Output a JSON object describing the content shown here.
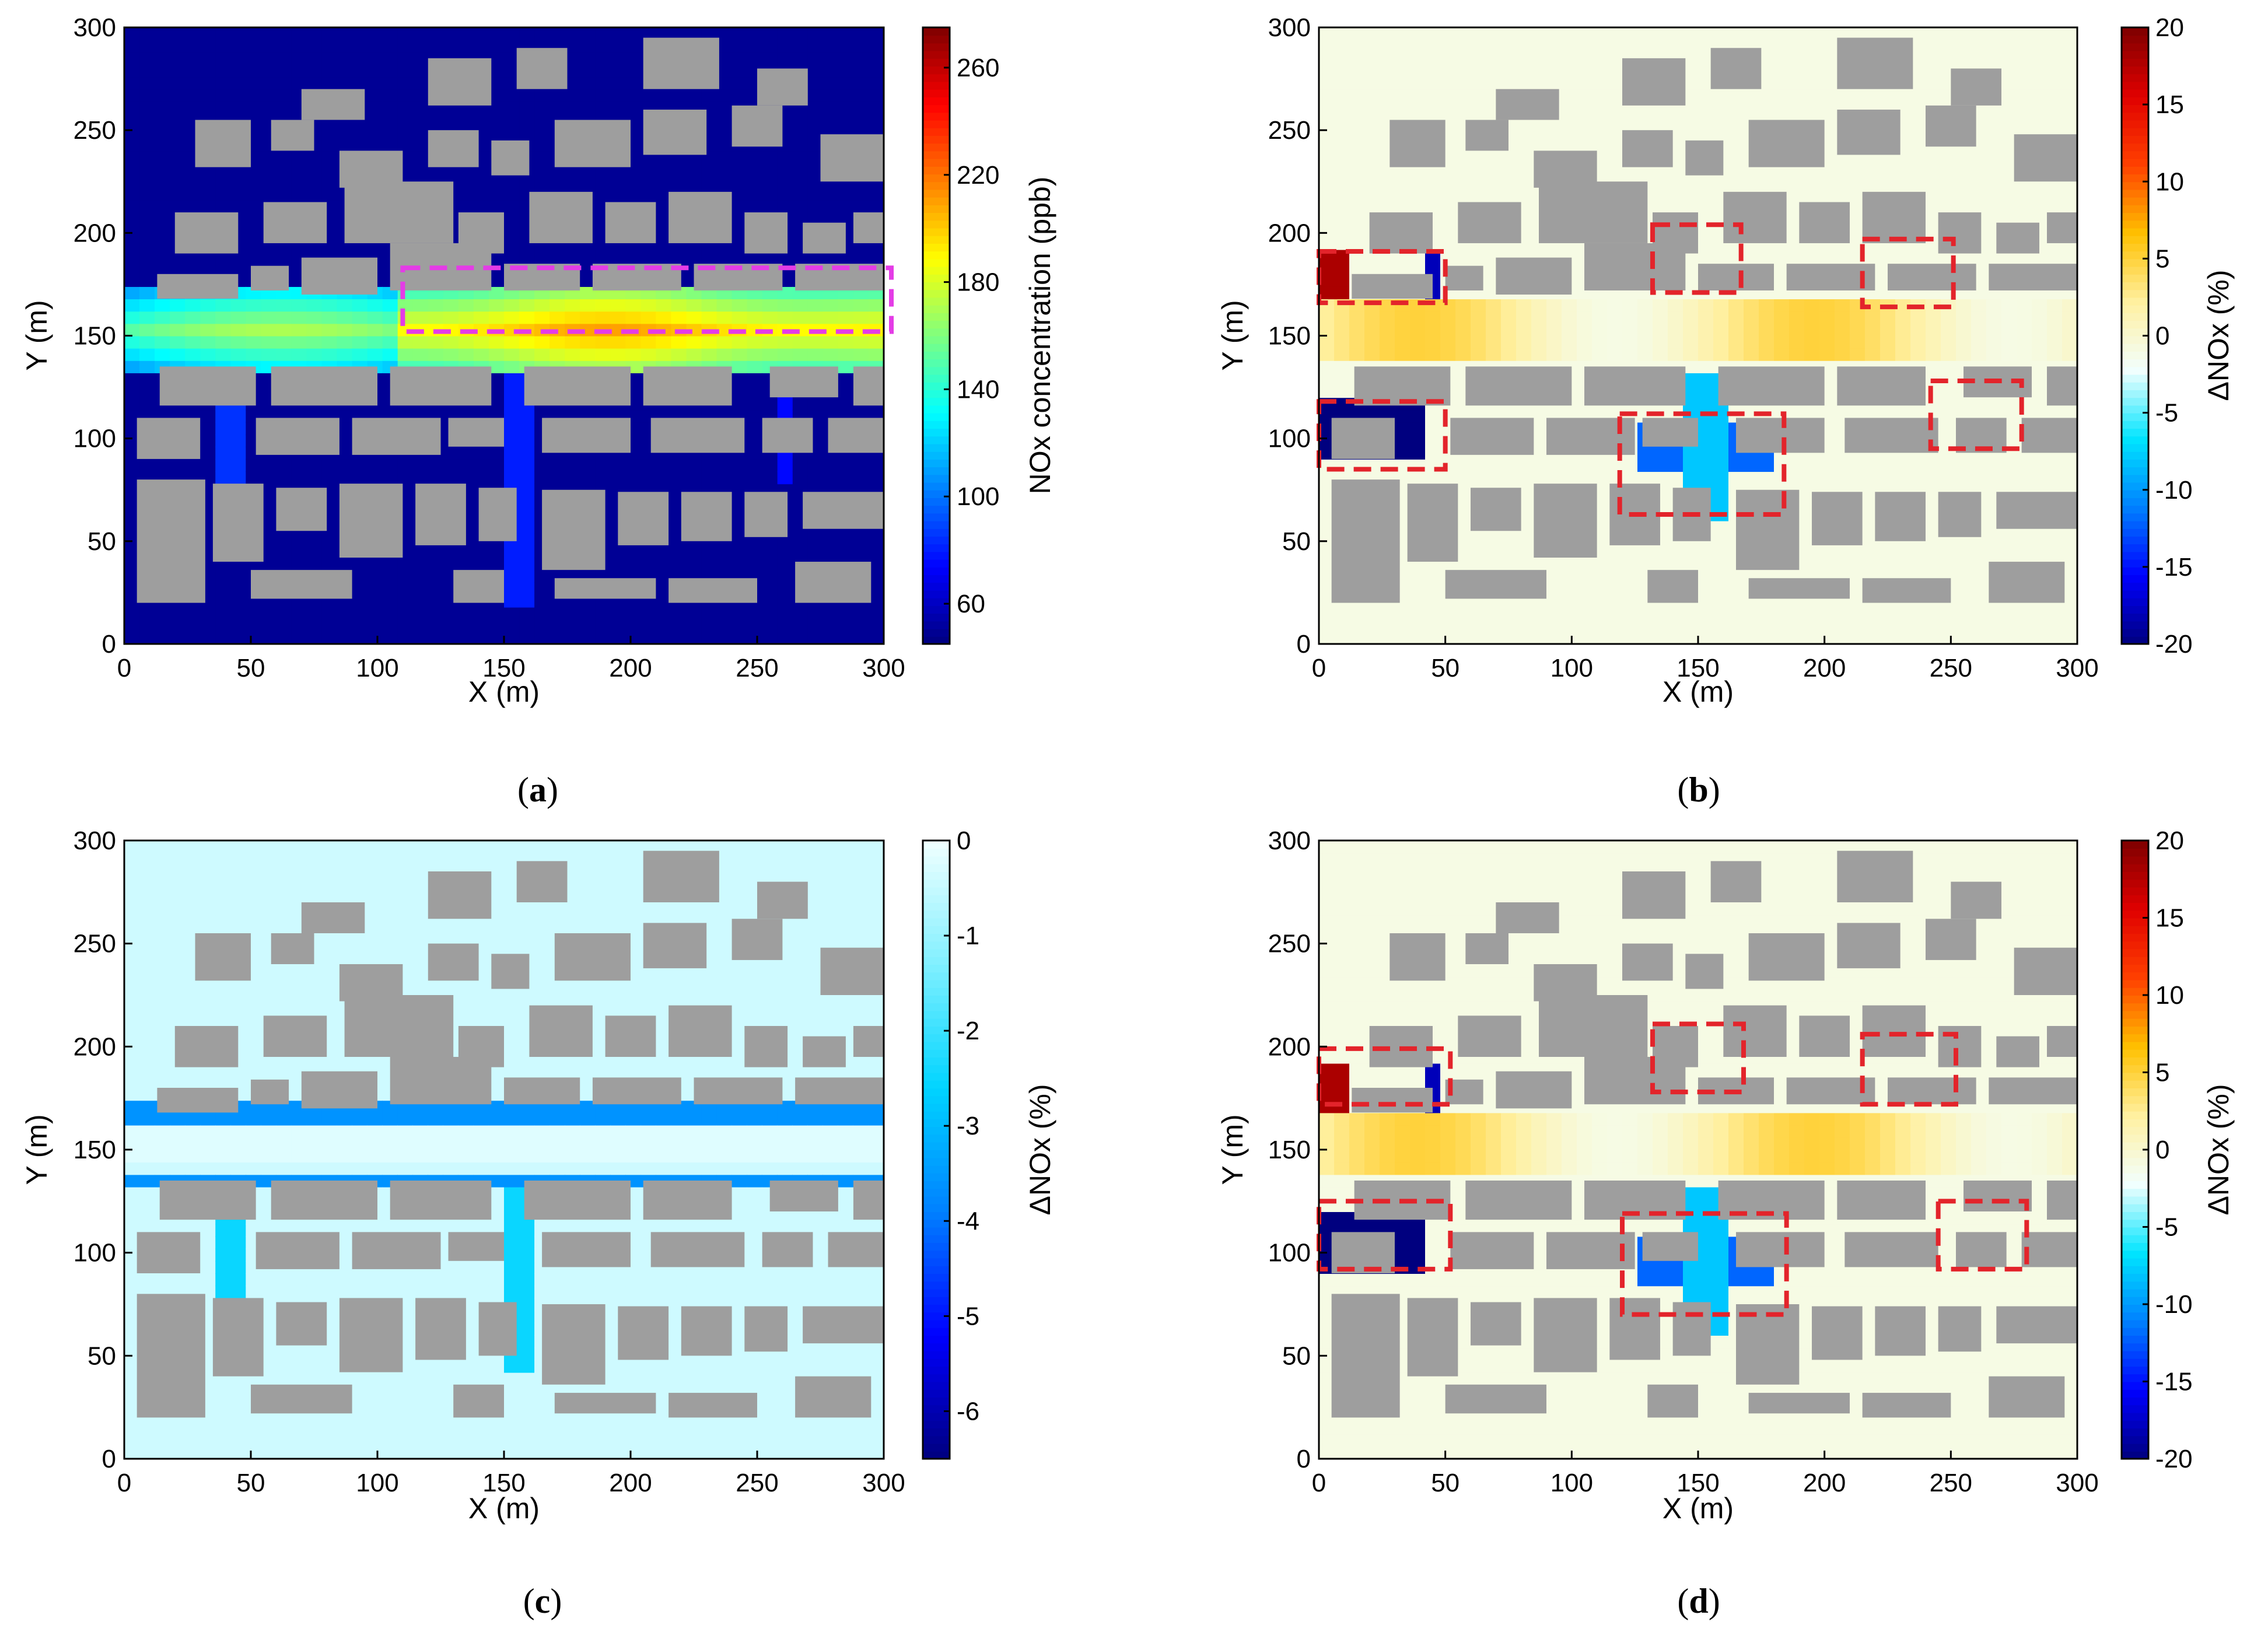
{
  "colors": {
    "background": "#ffffff",
    "building": "#9e9e9e",
    "box_magenta": "#e43ce6",
    "box_red": "#e3242b",
    "axis": "#000000"
  },
  "panels": [
    {
      "caption": "a",
      "colorbar_label": "NOx concentration (ppb)",
      "colorbar_ticks": [
        "60",
        "100",
        "140",
        "180",
        "220",
        "260"
      ],
      "colormap": "jet",
      "chart_data": {
        "type": "heatmap",
        "xlabel": "X (m)",
        "ylabel": "Y (m)",
        "xlim": [
          0,
          300
        ],
        "ylim": [
          0,
          300
        ],
        "xticks": [
          "0",
          "50",
          "100",
          "150",
          "200",
          "250",
          "300"
        ],
        "yticks": [
          "0",
          "50",
          "100",
          "150",
          "200",
          "250",
          "300"
        ],
        "colorbar": {
          "label": "NOx concentration (ppb)",
          "range": [
            45,
            275
          ],
          "ticks": [
            60,
            100,
            140,
            180,
            220,
            260
          ]
        },
        "highlight_boxes": [
          {
            "x": [
              110,
              303
            ],
            "y": [
              152,
              183
            ],
            "color": "magenta"
          }
        ]
      }
    },
    {
      "caption": "b",
      "colorbar_label": "ΔNOx (%)",
      "colorbar_ticks": [
        "-20",
        "-15",
        "-10",
        "-5",
        "0",
        "5",
        "10",
        "15",
        "20"
      ],
      "colormap": "diverging",
      "chart_data": {
        "type": "heatmap",
        "xlabel": "X (m)",
        "ylabel": "Y (m)",
        "xlim": [
          0,
          300
        ],
        "ylim": [
          0,
          300
        ],
        "xticks": [
          "0",
          "50",
          "100",
          "150",
          "200",
          "250",
          "300"
        ],
        "yticks": [
          "0",
          "50",
          "100",
          "150",
          "200",
          "250",
          "300"
        ],
        "colorbar": {
          "label": "ΔNOx (%)",
          "range": [
            -20,
            20
          ],
          "ticks": [
            -20,
            -15,
            -10,
            -5,
            0,
            5,
            10,
            15,
            20
          ]
        },
        "highlight_boxes": [
          {
            "x": [
              0,
              50
            ],
            "y": [
              166,
              191
            ]
          },
          {
            "x": [
              132,
              167
            ],
            "y": [
              171,
              204
            ]
          },
          {
            "x": [
              215,
              251
            ],
            "y": [
              164,
              197
            ]
          },
          {
            "x": [
              0,
              50
            ],
            "y": [
              85,
              118
            ]
          },
          {
            "x": [
              119,
              184
            ],
            "y": [
              63,
              112
            ]
          },
          {
            "x": [
              242,
              278
            ],
            "y": [
              95,
              128
            ]
          }
        ]
      }
    },
    {
      "caption": "c",
      "colorbar_label": "ΔNOx (%)",
      "colorbar_ticks": [
        "-6",
        "-5",
        "-4",
        "-3",
        "-2",
        "-1",
        "0"
      ],
      "colormap": "blues",
      "chart_data": {
        "type": "heatmap",
        "xlabel": "X (m)",
        "ylabel": "Y (m)",
        "xlim": [
          0,
          300
        ],
        "ylim": [
          0,
          300
        ],
        "xticks": [
          "0",
          "50",
          "100",
          "150",
          "200",
          "250",
          "300"
        ],
        "yticks": [
          "0",
          "50",
          "100",
          "150",
          "200",
          "250",
          "300"
        ],
        "colorbar": {
          "label": "ΔNOx (%)",
          "range": [
            -6.5,
            0
          ],
          "ticks": [
            -6,
            -5,
            -4,
            -3,
            -2,
            -1,
            0
          ]
        },
        "highlight_boxes": []
      }
    },
    {
      "caption": "d",
      "colorbar_label": "ΔNOx (%)",
      "colorbar_ticks": [
        "-20",
        "-15",
        "-10",
        "-5",
        "0",
        "5",
        "10",
        "15",
        "20"
      ],
      "colormap": "diverging",
      "chart_data": {
        "type": "heatmap",
        "xlabel": "X (m)",
        "ylabel": "Y (m)",
        "xlim": [
          0,
          300
        ],
        "ylim": [
          0,
          300
        ],
        "xticks": [
          "0",
          "50",
          "100",
          "150",
          "200",
          "250",
          "300"
        ],
        "yticks": [
          "0",
          "50",
          "100",
          "150",
          "200",
          "250",
          "300"
        ],
        "colorbar": {
          "label": "ΔNOx (%)",
          "range": [
            -20,
            20
          ],
          "ticks": [
            -20,
            -15,
            -10,
            -5,
            0,
            5,
            10,
            15,
            20
          ]
        },
        "highlight_boxes": [
          {
            "x": [
              0,
              52
            ],
            "y": [
              172,
              199
            ]
          },
          {
            "x": [
              132,
              168
            ],
            "y": [
              178,
              211
            ]
          },
          {
            "x": [
              215,
              252
            ],
            "y": [
              172,
              206
            ]
          },
          {
            "x": [
              0,
              52
            ],
            "y": [
              92,
              125
            ]
          },
          {
            "x": [
              120,
              185
            ],
            "y": [
              70,
              119
            ]
          },
          {
            "x": [
              245,
              280
            ],
            "y": [
              92,
              125
            ]
          }
        ]
      }
    }
  ]
}
